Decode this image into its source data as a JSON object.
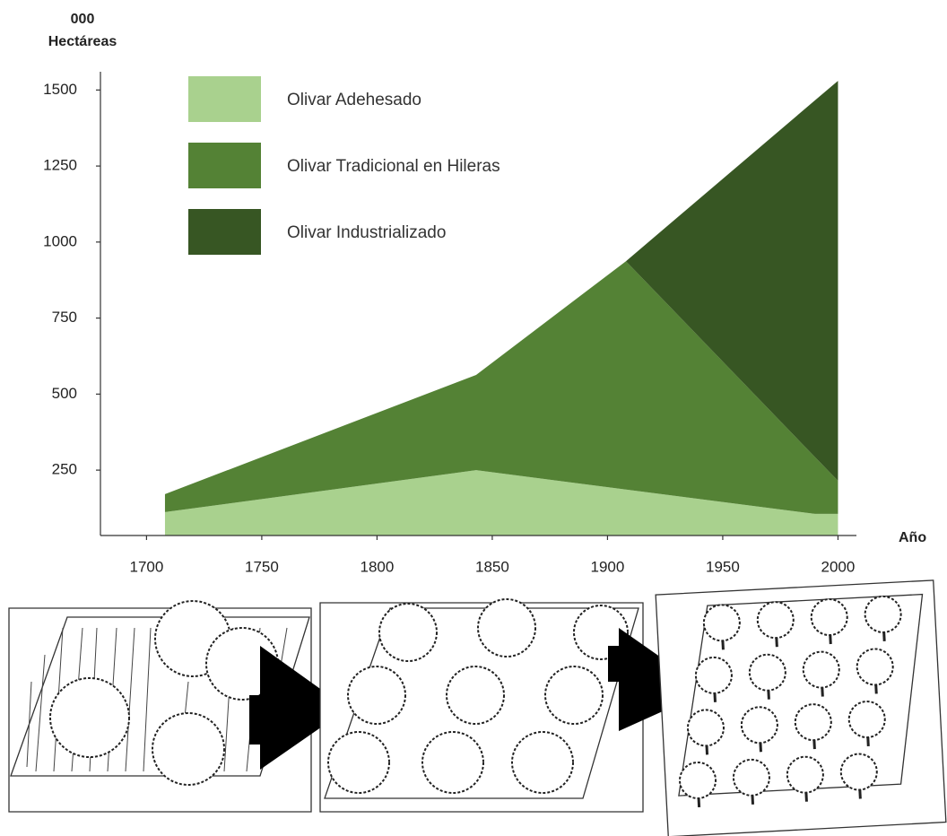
{
  "chart_data": {
    "type": "stacked-area",
    "y_unit": "000",
    "y_label": "Hectáreas",
    "x_label": "Año",
    "x": [
      1708,
      1843,
      1908,
      1990,
      2000
    ],
    "series": [
      {
        "name": "Olivar Adehesado",
        "color": "#a9d18e",
        "values": [
          112,
          250,
          186,
          106,
          106
        ]
      },
      {
        "name": "Olivar Tradicional en Hileras",
        "color": "#548235",
        "values": [
          59,
          313,
          751,
          187,
          109
        ]
      },
      {
        "name": "Olivar Industrializado",
        "color": "#375623",
        "values": [
          0,
          0,
          0,
          1173,
          1315
        ]
      }
    ],
    "xlim": [
      1680,
      2008
    ],
    "ylim": [
      35,
      1560
    ],
    "xticks": [
      1700,
      1750,
      1800,
      1850,
      1900,
      1950,
      2000
    ],
    "yticks": [
      250,
      500,
      750,
      1000,
      1250,
      1500
    ],
    "grid": false
  }
}
